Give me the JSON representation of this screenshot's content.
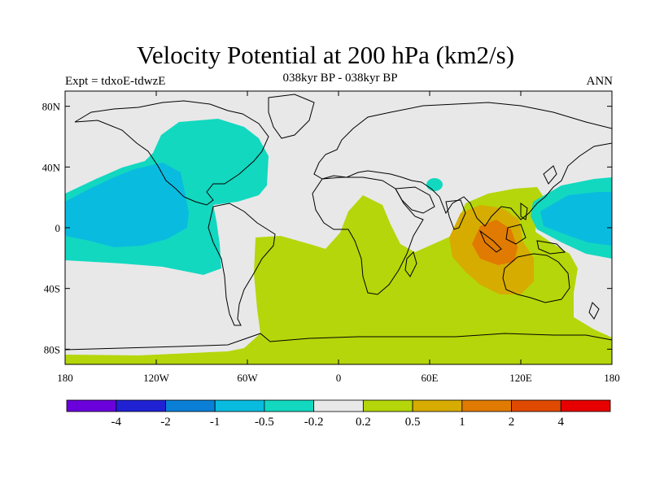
{
  "title": "Velocity Potential at 200 hPa (km2/s)",
  "subtitle": "038kyr BP - 038kyr BP",
  "left_label": "Expt = tdxoE-tdwzE",
  "right_label": "ANN",
  "map": {
    "projection": "cylindrical-equidistant",
    "lon_range": [
      -180,
      180
    ],
    "lat_range": [
      -90,
      90
    ],
    "x_ticks": [
      {
        "value": -180,
        "label": "180"
      },
      {
        "value": -120,
        "label": "120W"
      },
      {
        "value": -60,
        "label": "60W"
      },
      {
        "value": 0,
        "label": "0"
      },
      {
        "value": 60,
        "label": "60E"
      },
      {
        "value": 120,
        "label": "120E"
      },
      {
        "value": 180,
        "label": "180"
      }
    ],
    "y_ticks": [
      {
        "value": 80,
        "label": "80N"
      },
      {
        "value": 40,
        "label": "40N"
      },
      {
        "value": 0,
        "label": "0"
      },
      {
        "value": -40,
        "label": "40S"
      },
      {
        "value": -80,
        "label": "80S"
      }
    ],
    "background_color": "#e8e8e8",
    "coastline_color": "#000000"
  },
  "colorbar": {
    "colors": [
      "#6a00dc",
      "#2121d4",
      "#0a7fd6",
      "#0abbe0",
      "#12d8c0",
      "#e8e8e8",
      "#b5d60a",
      "#d6ac00",
      "#e07a00",
      "#e04a00",
      "#e60000"
    ],
    "labels": [
      "-4",
      "-2",
      "-1",
      "-0.5",
      "-0.2",
      "0.2",
      "0.5",
      "1",
      "2",
      "4"
    ]
  }
}
